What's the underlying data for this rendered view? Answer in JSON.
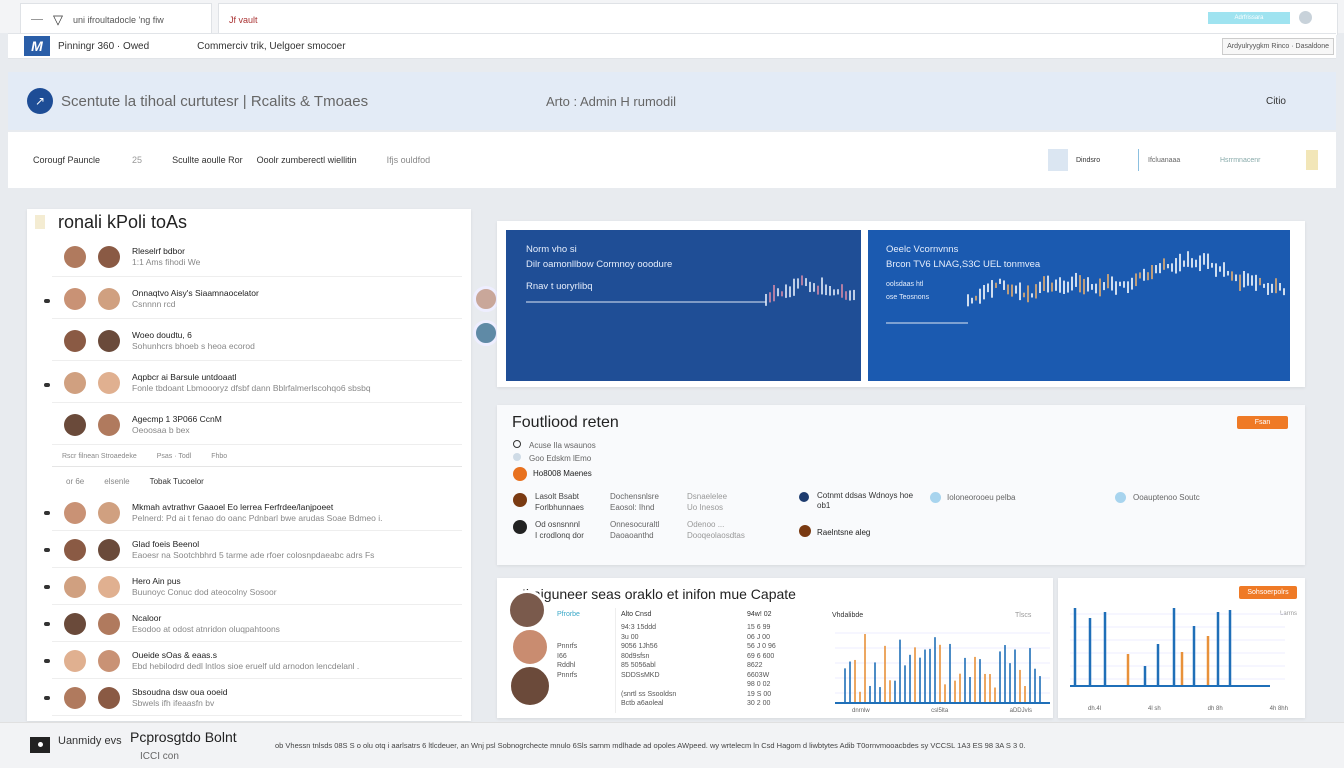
{
  "browser": {
    "tab1": "uni ifroultadocle 'ng fiw",
    "tab2": "Jf vault",
    "action_button": "Adrfrissara",
    "address_left": "Pinningr 360 · Owed",
    "address_mid": "Commerciv trik, Uelgoer smocoer",
    "address_right": "Ardyulryygkm Rinco · Dasaldone"
  },
  "banner": {
    "title": "Scentute la tihoal curtutesr | Rcalits & Tmoaes",
    "center": "Arto : Admin H rumodil",
    "right": "Citio"
  },
  "nav": {
    "items": [
      "Corougf Pauncle",
      "Scullte aoulle Ror",
      "Ooolr zumberectl wiellitin",
      "Ifjs ouldfod"
    ],
    "badge": "25",
    "right_a": "Dindsro",
    "right_b": "Ifcluanaaa",
    "right_c": "Hsrrmnacenr"
  },
  "left_panel": {
    "title": "ronali kPoli toAs",
    "rows": [
      {
        "name": "Rleselrf bdbor",
        "desc": "1:1 Ams fihodi We"
      },
      {
        "name": "Onnaqtvo Aisy's Siaamnaocelator",
        "desc": "Csnnnn rcd"
      },
      {
        "name": "Woeo doudtu, 6",
        "desc": "Sohunhcrs bhoeb s heoa ecorod"
      },
      {
        "name": "Aqpbcr ai Barsule untdoaatl",
        "desc": "Fonle tbdoant Lbmoooryz dfsbf dann Bblrfalmerlscohqo6 sbsbq"
      },
      {
        "name": "Agecmp  1 3P066  CcnM",
        "desc": "Oeoosaa b bex"
      }
    ],
    "filter_bar": [
      "Rscr filnean Stroaedeke",
      "Psas · Todl",
      "Fhbo"
    ],
    "subheader": [
      "or 6e",
      "elsenle",
      "Tobak Tucoelor"
    ],
    "rows2": [
      {
        "name": "Mkmah avtrathvr Gaaoel Eo lerrea Ferfrdee/lanjpoeet",
        "desc": "Pelnerd: Pd ai t fenao do oanc Pdnbarl bwe arudas Soae Bdmeo i."
      },
      {
        "name": "Glad foeis Beenol",
        "desc": "Eaoesr na Sootchbhrd 5 tarme ade rfoer colosnpdaeabc adrs Fs"
      },
      {
        "name": "Hero Ain pus",
        "desc": "Buunoyc Conuc dod ateocolny Sosoor"
      },
      {
        "name": "Ncaloor",
        "desc": "Esodoo at odost atnridon oluqpahtoons"
      },
      {
        "name": "Oueide  sOas & eaas.s",
        "desc": "Ebd hebilodrd dedl lntlos sioe eruelf uld arnodon lencdelanl ."
      },
      {
        "name": "Sbsoudna dsw oua ooeid",
        "desc": "Sbwels ifh ifeaasfn bv"
      }
    ]
  },
  "charts_card": {
    "left": {
      "line1": "Norm vho si",
      "line2": "Dilr oamonllbow Cormnoy ooodure",
      "line3": "Rnav t uoryrlibq"
    },
    "right": {
      "line1": "Oeelc Vcornvnns",
      "line2": "Brcon TV6 LNAG,S3C UEL tonmvea",
      "line3": "oolsdaas htl",
      "line4": "ose Teosnons"
    }
  },
  "info_card": {
    "title": "Foutliood reten",
    "button": "Fsan",
    "items": [
      "Acuse Ila wsaunos",
      "Goo Edskm lEmo",
      "Ho8008 Maenes"
    ],
    "cols": [
      [
        "Lasolt Bsabt",
        "Forlbhunnaes",
        "Od osnsnnnl",
        "I crodlonq dor"
      ],
      [
        "Dochensnlsre",
        "Eaosol: Ihnd",
        "Onnesocuraltl",
        "Daoaoanthd"
      ],
      [
        "Dsnaelelee",
        "Uo Inesos",
        "Odenoo ...",
        "Dooqeolaosdtas"
      ]
    ],
    "status": [
      "Cotnmt ddsas Wdnoys hoe ob1",
      "Raelntsne aleg",
      "Ioloneorooeu pelba",
      "Ooauptenoo Soutc"
    ],
    "colors": {
      "orange": "#e8711f",
      "navy": "#1d3b6e",
      "brown": "#7a3a12",
      "dark": "#222",
      "lightblue": "#a8d4ee"
    }
  },
  "table_card": {
    "title": "Ikaiguneer seas oraklo et  inifon mue Capate",
    "col_headers": [
      "Pfrorbe",
      "Alto Cnsd",
      "94w! 02",
      "Vhdalibde",
      "Tlscs"
    ],
    "rows": [
      [
        "",
        "94:3 15ddd",
        "15 6 99"
      ],
      [
        "",
        "3u 00",
        "06 J 00"
      ],
      [
        "Pnnrfs",
        "9056 1Jh56",
        "56 J 0 96"
      ],
      [
        "I66",
        "80d9sfsn",
        "69 6 600"
      ],
      [
        "Rddhl",
        "85 5056abl",
        "8622"
      ],
      [
        "Pnnrfs",
        "SDDSsMKD",
        "6603W"
      ],
      [
        "",
        "",
        "98 0 02"
      ],
      [
        "",
        "(snrtl  ss  Ssooldsn",
        "19 S 00"
      ],
      [
        "",
        "Bctb a6aoleal",
        "30 2 00"
      ]
    ],
    "x_ticks": [
      "dnrnlw",
      "csl5lta",
      "aDDJvls"
    ]
  },
  "bar_card": {
    "button": "Sohsoerpolrs",
    "legend": "Larrns",
    "x_ticks": [
      "dh.4l",
      "4l sh",
      "dh 8h",
      "4h 8hh"
    ]
  },
  "footer": {
    "label": "Uanmidy evs",
    "title": "Pcprosgtdo Bolnt",
    "sub": "ICCI con",
    "text": "ob Vhessn tnlsds 08S S o olu otq  i aarlsatrs 6 ltlcdeuer,   an Wnj psl Sobnogrchecte mnulo 6Sls sarnm mdlhade ad opoles AWpeed. wy wrtelecm ln Csd Hagom d liwbtytes Adib T0ornvmooacbdes sy VCCSL 1A3 ES 98 3A S 3 0."
  }
}
